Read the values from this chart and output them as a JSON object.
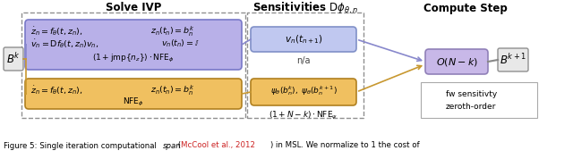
{
  "bg_color": "#ffffff",
  "fig_width": 6.4,
  "fig_height": 1.78,
  "solve_ivp_title": "Solve IVP",
  "sensitivities_title": "Sensitivities $\\mathrm{D}\\phi_{\\theta,n}$",
  "compute_step_title": "Compute Step",
  "blue_box_color": "#b8b0e8",
  "blue_box_edge": "#7878c8",
  "orange_box_color": "#f0c060",
  "orange_box_edge": "#b08020",
  "purple_box_color": "#c8b8e8",
  "purple_box_edge": "#9080b8",
  "gray_box_color": "#e8e8e8",
  "gray_box_edge": "#909090",
  "sens_blue_color": "#c0c8f0",
  "sens_blue_edge": "#8090c8",
  "sens_orange_color": "#f0c060",
  "sens_orange_edge": "#b08020",
  "dashed_color": "#909090",
  "fw_line_color": "#8888cc",
  "zo_line_color": "#c89830",
  "legend_fw": "fw sensitivty",
  "legend_zo": "zeroth-order"
}
